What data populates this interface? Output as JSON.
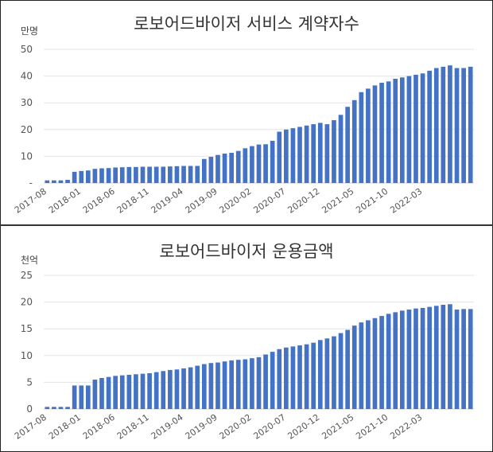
{
  "chart_data": [
    {
      "type": "bar",
      "title": "로보어드바이저 서비스 계약자수",
      "unit_label": "만명",
      "ylim": [
        0,
        50
      ],
      "yticks": [
        "-",
        "10",
        "20",
        "30",
        "40",
        "50"
      ],
      "xtick_labels": [
        "2017-08",
        "2018-01",
        "2018-06",
        "2018-11",
        "2019-04",
        "2019-09",
        "2020-02",
        "2020-07",
        "2020-12",
        "2021-05",
        "2021-10",
        "2022-03"
      ],
      "grid": true,
      "color": "#4472c4",
      "values": [
        1.0,
        1.0,
        1.0,
        1.2,
        4.2,
        4.5,
        4.7,
        5.3,
        5.5,
        5.6,
        5.8,
        5.9,
        6.0,
        6.0,
        6.1,
        6.1,
        6.1,
        6.1,
        6.2,
        6.3,
        6.4,
        6.4,
        6.4,
        9.0,
        9.8,
        10.5,
        11.0,
        11.3,
        12.0,
        13.0,
        13.8,
        14.4,
        14.5,
        15.8,
        19.2,
        20.0,
        20.5,
        21.0,
        21.5,
        22.0,
        22.5,
        22.0,
        23.5,
        25.5,
        28.5,
        31.0,
        34.0,
        35.3,
        36.5,
        37.5,
        38.0,
        39.0,
        39.5,
        40.0,
        40.5,
        41.0,
        42.0,
        43.0,
        43.5,
        44.0,
        43.0,
        43.0,
        43.5
      ]
    },
    {
      "type": "bar",
      "title": "로보어드바이저 운용금액",
      "unit_label": "천억",
      "ylim": [
        0,
        25
      ],
      "yticks": [
        "0",
        "5",
        "10",
        "15",
        "20",
        "25"
      ],
      "xtick_labels": [
        "2017-08",
        "2018-01",
        "2018-06",
        "2018-11",
        "2019-04",
        "2019-09",
        "2020-02",
        "2020-07",
        "2020-12",
        "2021-05",
        "2021-10",
        "2022-03"
      ],
      "grid": true,
      "color": "#4472c4",
      "values": [
        0.4,
        0.4,
        0.4,
        0.4,
        4.4,
        4.4,
        4.4,
        5.5,
        5.8,
        6.0,
        6.2,
        6.3,
        6.4,
        6.5,
        6.6,
        6.7,
        6.9,
        7.1,
        7.3,
        7.4,
        7.6,
        7.8,
        8.1,
        8.4,
        8.6,
        8.7,
        8.9,
        9.1,
        9.2,
        9.3,
        9.5,
        9.7,
        10.2,
        10.7,
        11.2,
        11.5,
        11.7,
        11.9,
        12.1,
        12.4,
        12.9,
        13.2,
        13.6,
        14.2,
        14.8,
        15.6,
        16.2,
        16.6,
        17.0,
        17.4,
        17.8,
        18.1,
        18.4,
        18.6,
        18.8,
        18.9,
        19.1,
        19.3,
        19.5,
        19.6,
        18.6,
        18.7,
        18.7
      ]
    }
  ]
}
